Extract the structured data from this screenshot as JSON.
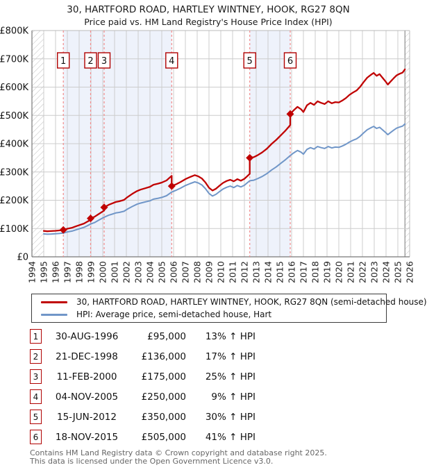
{
  "page": {
    "title_line1": "30, HARTFORD ROAD, HARTLEY WINTNEY, HOOK, RG27 8QN",
    "title_line2": "Price paid vs. HM Land Registry's House Price Index (HPI)"
  },
  "chart_data": {
    "type": "line",
    "title": "30, HARTFORD ROAD, HARTLEY WINTNEY, HOOK, RG27 8QN",
    "subtitle": "Price paid vs. HM Land Registry's House Price Index (HPI)",
    "units": "GBP_thousands",
    "x_axis": {
      "min": 1994,
      "max": 2026,
      "tick_years": [
        1994,
        1995,
        1996,
        1997,
        1998,
        1999,
        2000,
        2001,
        2002,
        2003,
        2004,
        2005,
        2006,
        2007,
        2008,
        2009,
        2010,
        2011,
        2012,
        2013,
        2014,
        2015,
        2016,
        2017,
        2018,
        2019,
        2020,
        2021,
        2022,
        2023,
        2024,
        2025,
        2026
      ]
    },
    "y_axis": {
      "min": 0,
      "max": 800,
      "tick_step": 100,
      "tick_labels": [
        "£0",
        "£100K",
        "£200K",
        "£300K",
        "£400K",
        "£500K",
        "£600K",
        "£700K",
        "£800K"
      ]
    },
    "series": [
      {
        "name": "30, HARTFORD ROAD, HARTLEY WINTNEY, HOOK, RG27 8QN (semi-detached house)",
        "color": "#c00000",
        "points": [
          [
            1995.0,
            91.5
          ],
          [
            1995.3,
            90.4
          ],
          [
            1995.6,
            91.0
          ],
          [
            1996.0,
            92.1
          ],
          [
            1996.3,
            93.2
          ],
          [
            1996.66,
            95.0
          ],
          [
            1997.0,
            99.4
          ],
          [
            1997.4,
            102.8
          ],
          [
            1997.7,
            107.4
          ],
          [
            1998.0,
            111.9
          ],
          [
            1998.4,
            117.5
          ],
          [
            1998.7,
            124.3
          ],
          [
            1998.97,
            131.1
          ],
          [
            1998.97,
            136.0
          ],
          [
            1999.3,
            141.6
          ],
          [
            1999.6,
            149.8
          ],
          [
            2000.12,
            163.8
          ],
          [
            2000.12,
            175.0
          ],
          [
            2000.5,
            183.8
          ],
          [
            2000.8,
            188.8
          ],
          [
            2001.1,
            193.8
          ],
          [
            2001.4,
            196.3
          ],
          [
            2001.8,
            201.3
          ],
          [
            2002.1,
            211.3
          ],
          [
            2002.5,
            222.5
          ],
          [
            2002.9,
            232.5
          ],
          [
            2003.2,
            237.5
          ],
          [
            2003.6,
            242.5
          ],
          [
            2004.0,
            247.5
          ],
          [
            2004.3,
            255.0
          ],
          [
            2004.7,
            258.8
          ],
          [
            2005.0,
            262.5
          ],
          [
            2005.4,
            270.0
          ],
          [
            2005.84,
            286.3
          ],
          [
            2005.84,
            250.0
          ],
          [
            2006.2,
            256.2
          ],
          [
            2006.6,
            264.9
          ],
          [
            2007.0,
            274.7
          ],
          [
            2007.4,
            282.3
          ],
          [
            2007.8,
            288.9
          ],
          [
            2008.1,
            284.5
          ],
          [
            2008.4,
            276.9
          ],
          [
            2008.7,
            262.7
          ],
          [
            2009.0,
            244.2
          ],
          [
            2009.3,
            234.4
          ],
          [
            2009.6,
            240.9
          ],
          [
            2009.9,
            251.8
          ],
          [
            2010.2,
            261.6
          ],
          [
            2010.5,
            268.1
          ],
          [
            2010.8,
            272.5
          ],
          [
            2011.1,
            267.1
          ],
          [
            2011.4,
            274.7
          ],
          [
            2011.7,
            269.2
          ],
          [
            2012.0,
            275.8
          ],
          [
            2012.45,
            293.2
          ],
          [
            2012.45,
            350.0
          ],
          [
            2012.8,
            352.3
          ],
          [
            2013.1,
            358.8
          ],
          [
            2013.5,
            369.2
          ],
          [
            2013.9,
            382.2
          ],
          [
            2014.3,
            399.1
          ],
          [
            2014.7,
            413.4
          ],
          [
            2015.1,
            430.3
          ],
          [
            2015.5,
            447.2
          ],
          [
            2015.88,
            465.4
          ],
          [
            2015.88,
            505.0
          ],
          [
            2016.2,
            518.9
          ],
          [
            2016.5,
            530.2
          ],
          [
            2016.8,
            521.7
          ],
          [
            2017.0,
            511.8
          ],
          [
            2017.3,
            535.8
          ],
          [
            2017.6,
            544.3
          ],
          [
            2017.9,
            537.2
          ],
          [
            2018.2,
            549.9
          ],
          [
            2018.5,
            544.3
          ],
          [
            2018.8,
            540.0
          ],
          [
            2019.1,
            549.9
          ],
          [
            2019.4,
            542.9
          ],
          [
            2019.7,
            547.1
          ],
          [
            2020.0,
            545.7
          ],
          [
            2020.3,
            552.7
          ],
          [
            2020.6,
            561.2
          ],
          [
            2020.9,
            572.5
          ],
          [
            2021.2,
            580.9
          ],
          [
            2021.5,
            588.0
          ],
          [
            2021.8,
            600.7
          ],
          [
            2022.1,
            617.6
          ],
          [
            2022.4,
            633.1
          ],
          [
            2022.7,
            643.0
          ],
          [
            2022.95,
            650.0
          ],
          [
            2023.2,
            640.1
          ],
          [
            2023.45,
            645.8
          ],
          [
            2023.7,
            633.1
          ],
          [
            2023.95,
            620.4
          ],
          [
            2024.15,
            609.1
          ],
          [
            2024.4,
            620.4
          ],
          [
            2024.65,
            631.7
          ],
          [
            2024.9,
            641.6
          ],
          [
            2025.15,
            647.2
          ],
          [
            2025.4,
            651.4
          ],
          [
            2025.6,
            662.7
          ]
        ]
      },
      {
        "name": "HPI: Average price, semi-detached house, Hart",
        "color": "#7096c8",
        "points": [
          [
            1995.0,
            81
          ],
          [
            1995.3,
            80
          ],
          [
            1995.6,
            80.5
          ],
          [
            1996.0,
            81.5
          ],
          [
            1996.3,
            82.5
          ],
          [
            1996.66,
            84
          ],
          [
            1997.0,
            88
          ],
          [
            1997.4,
            91
          ],
          [
            1997.7,
            95
          ],
          [
            1998.0,
            99
          ],
          [
            1998.4,
            104
          ],
          [
            1998.7,
            110
          ],
          [
            1998.97,
            116
          ],
          [
            1999.3,
            121
          ],
          [
            1999.6,
            128
          ],
          [
            2000.12,
            140
          ],
          [
            2000.5,
            147
          ],
          [
            2000.8,
            151
          ],
          [
            2001.1,
            155
          ],
          [
            2001.4,
            157
          ],
          [
            2001.8,
            161
          ],
          [
            2002.1,
            169
          ],
          [
            2002.5,
            178
          ],
          [
            2002.9,
            186
          ],
          [
            2003.2,
            190
          ],
          [
            2003.6,
            194
          ],
          [
            2004.0,
            198
          ],
          [
            2004.3,
            204
          ],
          [
            2004.7,
            207
          ],
          [
            2005.0,
            210
          ],
          [
            2005.4,
            216
          ],
          [
            2005.84,
            229
          ],
          [
            2006.2,
            235
          ],
          [
            2006.6,
            243
          ],
          [
            2007.0,
            252
          ],
          [
            2007.4,
            259
          ],
          [
            2007.8,
            265
          ],
          [
            2008.1,
            261
          ],
          [
            2008.4,
            254
          ],
          [
            2008.7,
            241
          ],
          [
            2009.0,
            224
          ],
          [
            2009.3,
            215
          ],
          [
            2009.6,
            221
          ],
          [
            2009.9,
            231
          ],
          [
            2010.2,
            240
          ],
          [
            2010.5,
            246
          ],
          [
            2010.8,
            250
          ],
          [
            2011.1,
            245
          ],
          [
            2011.4,
            252
          ],
          [
            2011.7,
            247
          ],
          [
            2012.0,
            253
          ],
          [
            2012.45,
            269
          ],
          [
            2012.8,
            271
          ],
          [
            2013.1,
            276
          ],
          [
            2013.5,
            284
          ],
          [
            2013.9,
            294
          ],
          [
            2014.3,
            307
          ],
          [
            2014.7,
            318
          ],
          [
            2015.1,
            331
          ],
          [
            2015.5,
            344
          ],
          [
            2015.88,
            358
          ],
          [
            2016.2,
            368
          ],
          [
            2016.5,
            376
          ],
          [
            2016.8,
            370
          ],
          [
            2017.0,
            363
          ],
          [
            2017.3,
            380
          ],
          [
            2017.6,
            386
          ],
          [
            2017.9,
            381
          ],
          [
            2018.2,
            390
          ],
          [
            2018.5,
            386
          ],
          [
            2018.8,
            383
          ],
          [
            2019.1,
            390
          ],
          [
            2019.4,
            385
          ],
          [
            2019.7,
            388
          ],
          [
            2020.0,
            387
          ],
          [
            2020.3,
            392
          ],
          [
            2020.6,
            398
          ],
          [
            2020.9,
            406
          ],
          [
            2021.2,
            412
          ],
          [
            2021.5,
            417
          ],
          [
            2021.8,
            426
          ],
          [
            2022.1,
            438
          ],
          [
            2022.4,
            449
          ],
          [
            2022.7,
            456
          ],
          [
            2022.95,
            461
          ],
          [
            2023.2,
            454
          ],
          [
            2023.45,
            458
          ],
          [
            2023.7,
            449
          ],
          [
            2023.95,
            440
          ],
          [
            2024.15,
            432
          ],
          [
            2024.4,
            440
          ],
          [
            2024.65,
            448
          ],
          [
            2024.9,
            455
          ],
          [
            2025.15,
            459
          ],
          [
            2025.4,
            462
          ],
          [
            2025.6,
            470
          ]
        ]
      }
    ],
    "markers": [
      {
        "n": "1",
        "year": 1996.66,
        "value": 95
      },
      {
        "n": "2",
        "year": 1998.97,
        "value": 136
      },
      {
        "n": "3",
        "year": 2000.12,
        "value": 175
      },
      {
        "n": "4",
        "year": 2005.84,
        "value": 250
      },
      {
        "n": "5",
        "year": 2012.45,
        "value": 350
      },
      {
        "n": "6",
        "year": 2015.88,
        "value": 505
      }
    ],
    "shaded_bands": [
      [
        1996.66,
        2005.84
      ],
      [
        2012.45,
        2015.88
      ]
    ],
    "hatch_bands": [
      [
        1994,
        1995
      ],
      [
        2025.6,
        2026
      ]
    ],
    "colors": {
      "property": "#c00000",
      "hpi": "#7096c8",
      "band": "#eef2fb",
      "dashed": "#f28a8a",
      "grid": "#cccccc",
      "axis_dark": "#777777",
      "axis_light": "#bbbbbb",
      "hatch": "#c0c0c0",
      "marker_box_border": "#b00000"
    },
    "legend_position": "bottom"
  },
  "legend": {
    "entries": [
      {
        "label": "30, HARTFORD ROAD, HARTLEY WINTNEY, HOOK, RG27 8QN (semi-detached house)",
        "color": "#c00000"
      },
      {
        "label": "HPI: Average price, semi-detached house, Hart",
        "color": "#7096c8"
      }
    ]
  },
  "table": {
    "rows": [
      {
        "num": "1",
        "date": "30-AUG-1996",
        "price": "£95,000",
        "hpi_diff": "13% ↑ HPI"
      },
      {
        "num": "2",
        "date": "21-DEC-1998",
        "price": "£136,000",
        "hpi_diff": "17% ↑ HPI"
      },
      {
        "num": "3",
        "date": "11-FEB-2000",
        "price": "£175,000",
        "hpi_diff": "25% ↑ HPI"
      },
      {
        "num": "4",
        "date": "04-NOV-2005",
        "price": "£250,000",
        "hpi_diff": "9% ↑ HPI"
      },
      {
        "num": "5",
        "date": "15-JUN-2012",
        "price": "£350,000",
        "hpi_diff": "30% ↑ HPI"
      },
      {
        "num": "6",
        "date": "18-NOV-2015",
        "price": "£505,000",
        "hpi_diff": "41% ↑ HPI"
      }
    ]
  },
  "footer": {
    "line1": "Contains HM Land Registry data © Crown copyright and database right 2025.",
    "line2": "This data is licensed under the Open Government Licence v3.0."
  }
}
